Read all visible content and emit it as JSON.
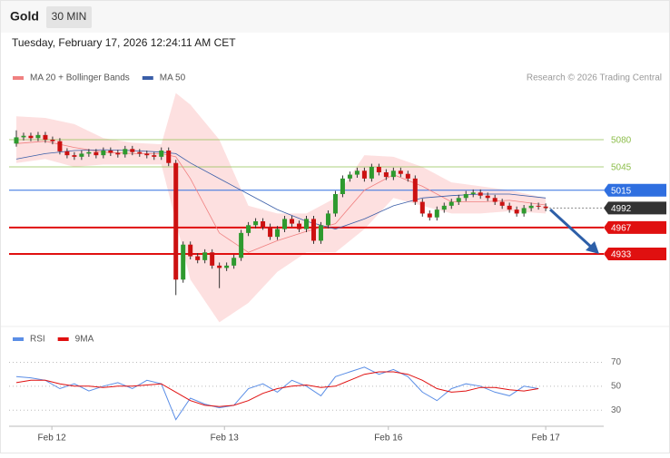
{
  "header": {
    "title": "Gold",
    "timeframe": "30 MIN",
    "datetime": "Tuesday, February 17, 2026 12:24:11 AM CET",
    "credit": "Research © 2026 Trading Central"
  },
  "chart_data": [
    {
      "type": "candlestick",
      "xlim": [
        -1,
        81
      ],
      "ylim": [
        4842,
        5143
      ],
      "up_color": "#2e9a2e",
      "down_color": "#cc1111",
      "x": [
        0,
        1,
        2,
        3,
        4,
        5,
        6,
        7,
        8,
        9,
        10,
        11,
        12,
        13,
        14,
        15,
        16,
        17,
        18,
        19,
        20,
        21,
        22,
        23,
        24,
        25,
        26,
        27,
        28,
        29,
        30,
        31,
        32,
        33,
        34,
        35,
        36,
        37,
        38,
        39,
        40,
        41,
        42,
        43,
        44,
        45,
        46,
        47,
        48,
        49,
        50,
        51,
        52,
        53,
        54,
        55,
        56,
        57,
        58,
        59,
        60,
        61,
        62,
        63,
        64,
        65,
        66,
        67,
        68,
        69,
        70,
        71,
        72,
        73
      ],
      "open": [
        5075,
        5083,
        5085,
        5082,
        5086,
        5080,
        5078,
        5065,
        5060,
        5058,
        5062,
        5064,
        5060,
        5066,
        5063,
        5061,
        5068,
        5064,
        5062,
        5060,
        5058,
        5066,
        5050,
        4900,
        4945,
        4930,
        4925,
        4935,
        4918,
        4915,
        4918,
        4928,
        4960,
        4970,
        4975,
        4968,
        4955,
        4965,
        4978,
        4972,
        4965,
        4978,
        4950,
        4970,
        4985,
        5010,
        5030,
        5035,
        5040,
        5030,
        5045,
        5038,
        5032,
        5040,
        5036,
        5030,
        5000,
        4985,
        4980,
        4990,
        4995,
        5000,
        5005,
        5010,
        5012,
        5008,
        5005,
        5000,
        4995,
        4990,
        4985,
        4992,
        4995,
        4994
      ],
      "high": [
        5092,
        5089,
        5089,
        5090,
        5090,
        5084,
        5082,
        5069,
        5064,
        5066,
        5068,
        5068,
        5070,
        5070,
        5067,
        5072,
        5072,
        5068,
        5066,
        5064,
        5070,
        5070,
        5054,
        4949,
        4949,
        4934,
        4939,
        4939,
        4922,
        4922,
        4932,
        4964,
        4974,
        4979,
        4979,
        4972,
        4969,
        4982,
        4982,
        4976,
        4982,
        4982,
        4974,
        4989,
        5014,
        5034,
        5039,
        5044,
        5044,
        5049,
        5049,
        5042,
        5044,
        5044,
        5040,
        5034,
        5004,
        4989,
        4994,
        4999,
        5004,
        5009,
        5014,
        5016,
        5016,
        5012,
        5009,
        5004,
        4999,
        4994,
        4996,
        4999,
        4999,
        4998
      ],
      "low": [
        5071,
        5079,
        5078,
        5078,
        5076,
        5074,
        5061,
        5056,
        5054,
        5054,
        5058,
        5056,
        5056,
        5059,
        5057,
        5057,
        5060,
        5058,
        5056,
        5054,
        5054,
        5046,
        4880,
        4896,
        4926,
        4921,
        4921,
        4914,
        4889,
        4911,
        4914,
        4924,
        4956,
        4966,
        4964,
        4951,
        4951,
        4961,
        4968,
        4961,
        4961,
        4946,
        4946,
        4966,
        4981,
        5006,
        5026,
        5031,
        5026,
        5026,
        5034,
        5028,
        5028,
        5032,
        5026,
        4996,
        4981,
        4976,
        4976,
        4986,
        4991,
        4996,
        5001,
        5006,
        5004,
        5001,
        4996,
        4991,
        4986,
        4981,
        4981,
        4988,
        4990,
        4988
      ],
      "close": [
        5083,
        5085,
        5082,
        5086,
        5080,
        5078,
        5065,
        5060,
        5058,
        5062,
        5064,
        5060,
        5066,
        5063,
        5061,
        5068,
        5064,
        5062,
        5060,
        5058,
        5066,
        5050,
        4900,
        4945,
        4930,
        4925,
        4935,
        4918,
        4915,
        4918,
        4928,
        4960,
        4970,
        4975,
        4968,
        4955,
        4965,
        4978,
        4972,
        4965,
        4978,
        4950,
        4970,
        4985,
        5010,
        5030,
        5035,
        5040,
        5030,
        5045,
        5038,
        5032,
        5040,
        5036,
        5030,
        5000,
        4985,
        4980,
        4990,
        4995,
        5000,
        5005,
        5010,
        5012,
        5008,
        5005,
        5000,
        4995,
        4990,
        4985,
        4992,
        4995,
        4994,
        4992
      ],
      "series": [
        {
          "name": "MA 20 + Bollinger Bands",
          "color": "#f08080",
          "band_color": "#fde0e0",
          "x": [
            0,
            4,
            8,
            12,
            16,
            20,
            22,
            24,
            28,
            32,
            36,
            40,
            44,
            48,
            52,
            56,
            60,
            64,
            68,
            73
          ],
          "values": [
            5075,
            5078,
            5070,
            5064,
            5062,
            5062,
            5058,
            5030,
            4960,
            4935,
            4950,
            4962,
            4972,
            5015,
            5035,
            5020,
            5000,
            5000,
            5002,
            4996
          ],
          "upper": [
            5110,
            5108,
            5100,
            5082,
            5076,
            5074,
            5140,
            5125,
            5080,
            4995,
            4985,
            4985,
            5005,
            5060,
            5058,
            5045,
            5025,
            5020,
            5015,
            5005
          ],
          "lower": [
            5050,
            5055,
            5045,
            5048,
            5048,
            5048,
            4975,
            4900,
            4845,
            4870,
            4910,
            4935,
            4935,
            4965,
            5005,
            4995,
            4985,
            4985,
            4988,
            4985
          ]
        },
        {
          "name": "MA 50",
          "color": "#3a5ea8",
          "x": [
            0,
            4,
            8,
            12,
            16,
            20,
            22,
            24,
            28,
            32,
            36,
            40,
            44,
            48,
            52,
            56,
            60,
            64,
            68,
            73
          ],
          "values": [
            5055,
            5062,
            5066,
            5067,
            5066,
            5064,
            5062,
            5050,
            5030,
            5010,
            4990,
            4975,
            4965,
            4978,
            4995,
            5005,
            5008,
            5010,
            5010,
            5005
          ]
        }
      ],
      "levels": [
        {
          "value": 5080,
          "color": "#8cbd4a",
          "boxed": false,
          "dotted": false
        },
        {
          "value": 5045,
          "color": "#8cbd4a",
          "boxed": false,
          "dotted": false
        },
        {
          "value": 5015,
          "color": "#2f6fe0",
          "boxed": true,
          "dotted": false
        },
        {
          "value": 4992,
          "color": "#333333",
          "boxed": true,
          "dotted": true
        },
        {
          "value": 4967,
          "color": "#e01010",
          "boxed": true,
          "dotted": false
        },
        {
          "value": 4933,
          "color": "#e01010",
          "boxed": true,
          "dotted": false
        }
      ]
    },
    {
      "type": "line",
      "xlim": [
        -1,
        81
      ],
      "ylim": [
        18,
        81
      ],
      "yticks": [
        30,
        50,
        70
      ],
      "grid": true,
      "xticks": [
        {
          "value": 4.9,
          "label": "Feb 12"
        },
        {
          "value": 28.7,
          "label": "Feb 13"
        },
        {
          "value": 51.3,
          "label": "Feb 16"
        },
        {
          "value": 73,
          "label": "Feb 17"
        }
      ],
      "series": [
        {
          "name": "RSI",
          "color": "#5b8ee6",
          "x": [
            0,
            2,
            4,
            6,
            8,
            10,
            12,
            14,
            16,
            18,
            20,
            22,
            24,
            26,
            28,
            30,
            32,
            34,
            36,
            38,
            40,
            42,
            44,
            46,
            48,
            50,
            52,
            54,
            56,
            58,
            60,
            62,
            64,
            66,
            68,
            70,
            72
          ],
          "values": [
            58,
            57,
            55,
            48,
            52,
            46,
            50,
            53,
            48,
            55,
            52,
            22,
            40,
            35,
            32,
            34,
            48,
            52,
            45,
            55,
            50,
            42,
            58,
            62,
            66,
            60,
            64,
            58,
            45,
            38,
            48,
            52,
            50,
            45,
            42,
            50,
            48
          ]
        },
        {
          "name": "9MA",
          "color": "#e01010",
          "x": [
            0,
            2,
            4,
            6,
            8,
            10,
            12,
            14,
            16,
            18,
            20,
            22,
            24,
            26,
            28,
            30,
            32,
            34,
            36,
            38,
            40,
            42,
            44,
            46,
            48,
            50,
            52,
            54,
            56,
            58,
            60,
            62,
            64,
            66,
            68,
            70,
            72
          ],
          "values": [
            53,
            55,
            55,
            52,
            50,
            50,
            49,
            50,
            50,
            51,
            52,
            45,
            38,
            34,
            33,
            34,
            38,
            44,
            48,
            50,
            51,
            49,
            50,
            55,
            60,
            62,
            62,
            60,
            55,
            48,
            45,
            46,
            49,
            49,
            47,
            46,
            48
          ]
        }
      ]
    }
  ]
}
